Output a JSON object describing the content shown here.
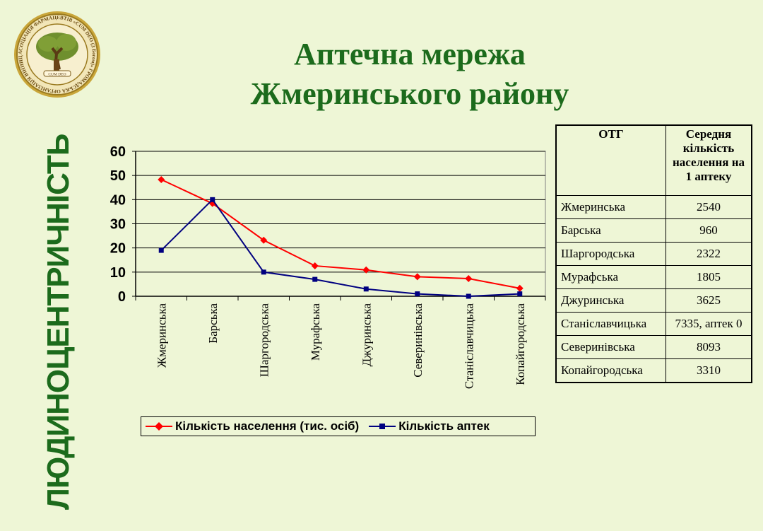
{
  "title": {
    "line1": "Аптечна мережа",
    "line2": "Жмеринського району"
  },
  "side_text": "ЛЮДИНОЦЕНТРИЧНІСТЬ",
  "logo": {
    "ring_text": "АСОЦІАЦІЯ ФАРМАЦЕВТІВ «CUM DEO (З Богом)» ГРОМАДСЬКА ОРГАНІЗАЦІЯ ВІННИЦЬКА ОБЛАСНА",
    "ribbon_text": "CUM DEO"
  },
  "colors": {
    "population": "#ff0000",
    "pharmacies": "#000080",
    "title": "#1c6b1c"
  },
  "chart_data": {
    "type": "line",
    "categories": [
      "Жмеринська",
      "Барська",
      "Шаргородська",
      "Мурафська",
      "Джуринська",
      "Северинівська",
      "Станіславчицька",
      "Копайгородська"
    ],
    "series": [
      {
        "name": "Кількість населення (тис. осіб)",
        "values": [
          48.3,
          38.4,
          23.2,
          12.6,
          10.9,
          8.1,
          7.3,
          3.3
        ],
        "marker": "diamond"
      },
      {
        "name": "Кількість аптек",
        "values": [
          19,
          40,
          10,
          7,
          3,
          1,
          0,
          1
        ],
        "marker": "square"
      }
    ],
    "yticks": [
      0,
      10,
      20,
      30,
      40,
      50,
      60
    ],
    "ylim": [
      0,
      60
    ],
    "grid": true,
    "legend": "bottom"
  },
  "table": {
    "headers": [
      "ОТГ",
      "Середня кількість населення на 1 аптеку"
    ],
    "rows": [
      [
        "Жмеринська",
        "2540"
      ],
      [
        "Барська",
        "960"
      ],
      [
        "Шаргородська",
        "2322"
      ],
      [
        "Мурафська",
        "1805"
      ],
      [
        "Джуринська",
        "3625"
      ],
      [
        "Станіславчицька",
        "7335, аптек 0"
      ],
      [
        "Северинівська",
        "8093"
      ],
      [
        "Копайгородська",
        "3310"
      ]
    ]
  }
}
